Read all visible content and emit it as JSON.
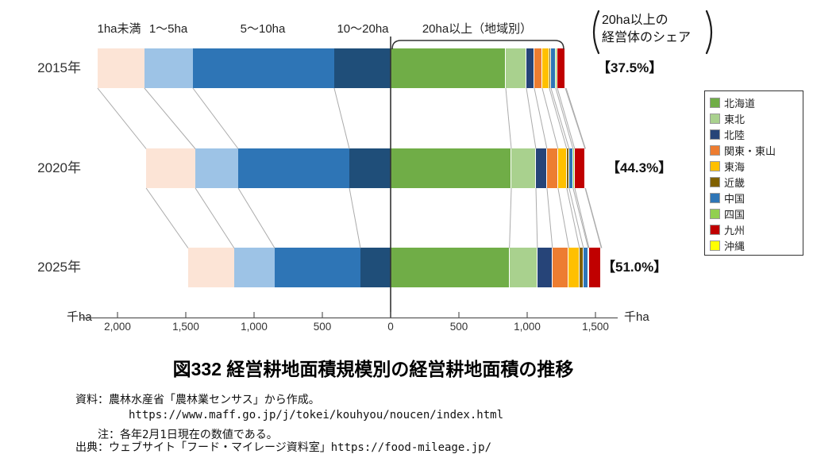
{
  "title": {
    "text": "図332 経営耕地面積規模別の経営耕地面積の推移"
  },
  "annotation": {
    "line1": "20ha以上の",
    "line2": "経営体のシェア"
  },
  "axis": {
    "unit": "千ha",
    "zero_label": "0"
  },
  "footnotes": [
    "資料：農林水産省「農林業センサス」から作成。",
    "https://www.maff.go.jp/j/tokei/kouhyou/noucen/index.html",
    "注：各年2月1日現在の数値である。",
    "出典：ウェブサイト「フード・マイレージ資料室」https://food-mileage.jp/"
  ],
  "chart_data": {
    "type": "bar",
    "subtype": "diverging-stacked-horizontal",
    "title": "図332 経営耕地面積規模別の経営耕地面積の推移",
    "unit": "千ha",
    "note": "size classes under 20ha extend left from 0; 20ha+ broken down by region extends right",
    "size_categories": [
      "1ha未満",
      "1〜5ha",
      "5〜10ha",
      "10〜20ha"
    ],
    "over20_header": "20ha以上（地域別）",
    "regions": [
      "北海道",
      "東北",
      "北陸",
      "関東・東山",
      "東海",
      "近畿",
      "中国",
      "四国",
      "九州",
      "沖縄"
    ],
    "left_colors": [
      "#fce4d6",
      "#9dc3e6",
      "#2e75b6",
      "#1f4e79"
    ],
    "region_colors": [
      "#70ad47",
      "#a9d18e",
      "#264478",
      "#ed7d31",
      "#ffc000",
      "#7f6000",
      "#2e75b6",
      "#92d050",
      "#c00000",
      "#ffff00"
    ],
    "axis_ticks": {
      "left": [
        {
          "value": 2000,
          "label": "2,000"
        },
        {
          "value": 1500,
          "label": "1,500"
        },
        {
          "value": 1000,
          "label": "1,000"
        },
        {
          "value": 500,
          "label": "500"
        }
      ],
      "zero": {
        "value": 0,
        "label": "0"
      },
      "right": [
        {
          "value": 500,
          "label": "500"
        },
        {
          "value": 1000,
          "label": "1,000"
        },
        {
          "value": 1500,
          "label": "1,500"
        }
      ]
    },
    "rows": [
      {
        "year": "2015年",
        "share_label": "【37.5%】",
        "share_pct": 37.5,
        "left_values": [
          343,
          355,
          1035,
          413
        ],
        "right_values": [
          843,
          151,
          58,
          58,
          52,
          12,
          35,
          12,
          58,
          6
        ]
      },
      {
        "year": "2020年",
        "share_label": "【44.3%】",
        "share_pct": 44.3,
        "left_values": [
          360,
          314,
          814,
          302
        ],
        "right_values": [
          884,
          180,
          81,
          81,
          64,
          17,
          29,
          12,
          76,
          3
        ]
      },
      {
        "year": "2025年",
        "share_label": "【51.0%】",
        "share_pct": 51.0,
        "left_values": [
          337,
          297,
          628,
          221
        ],
        "right_values": [
          870,
          205,
          110,
          120,
          78,
          29,
          35,
          6,
          90,
          3
        ]
      }
    ]
  }
}
